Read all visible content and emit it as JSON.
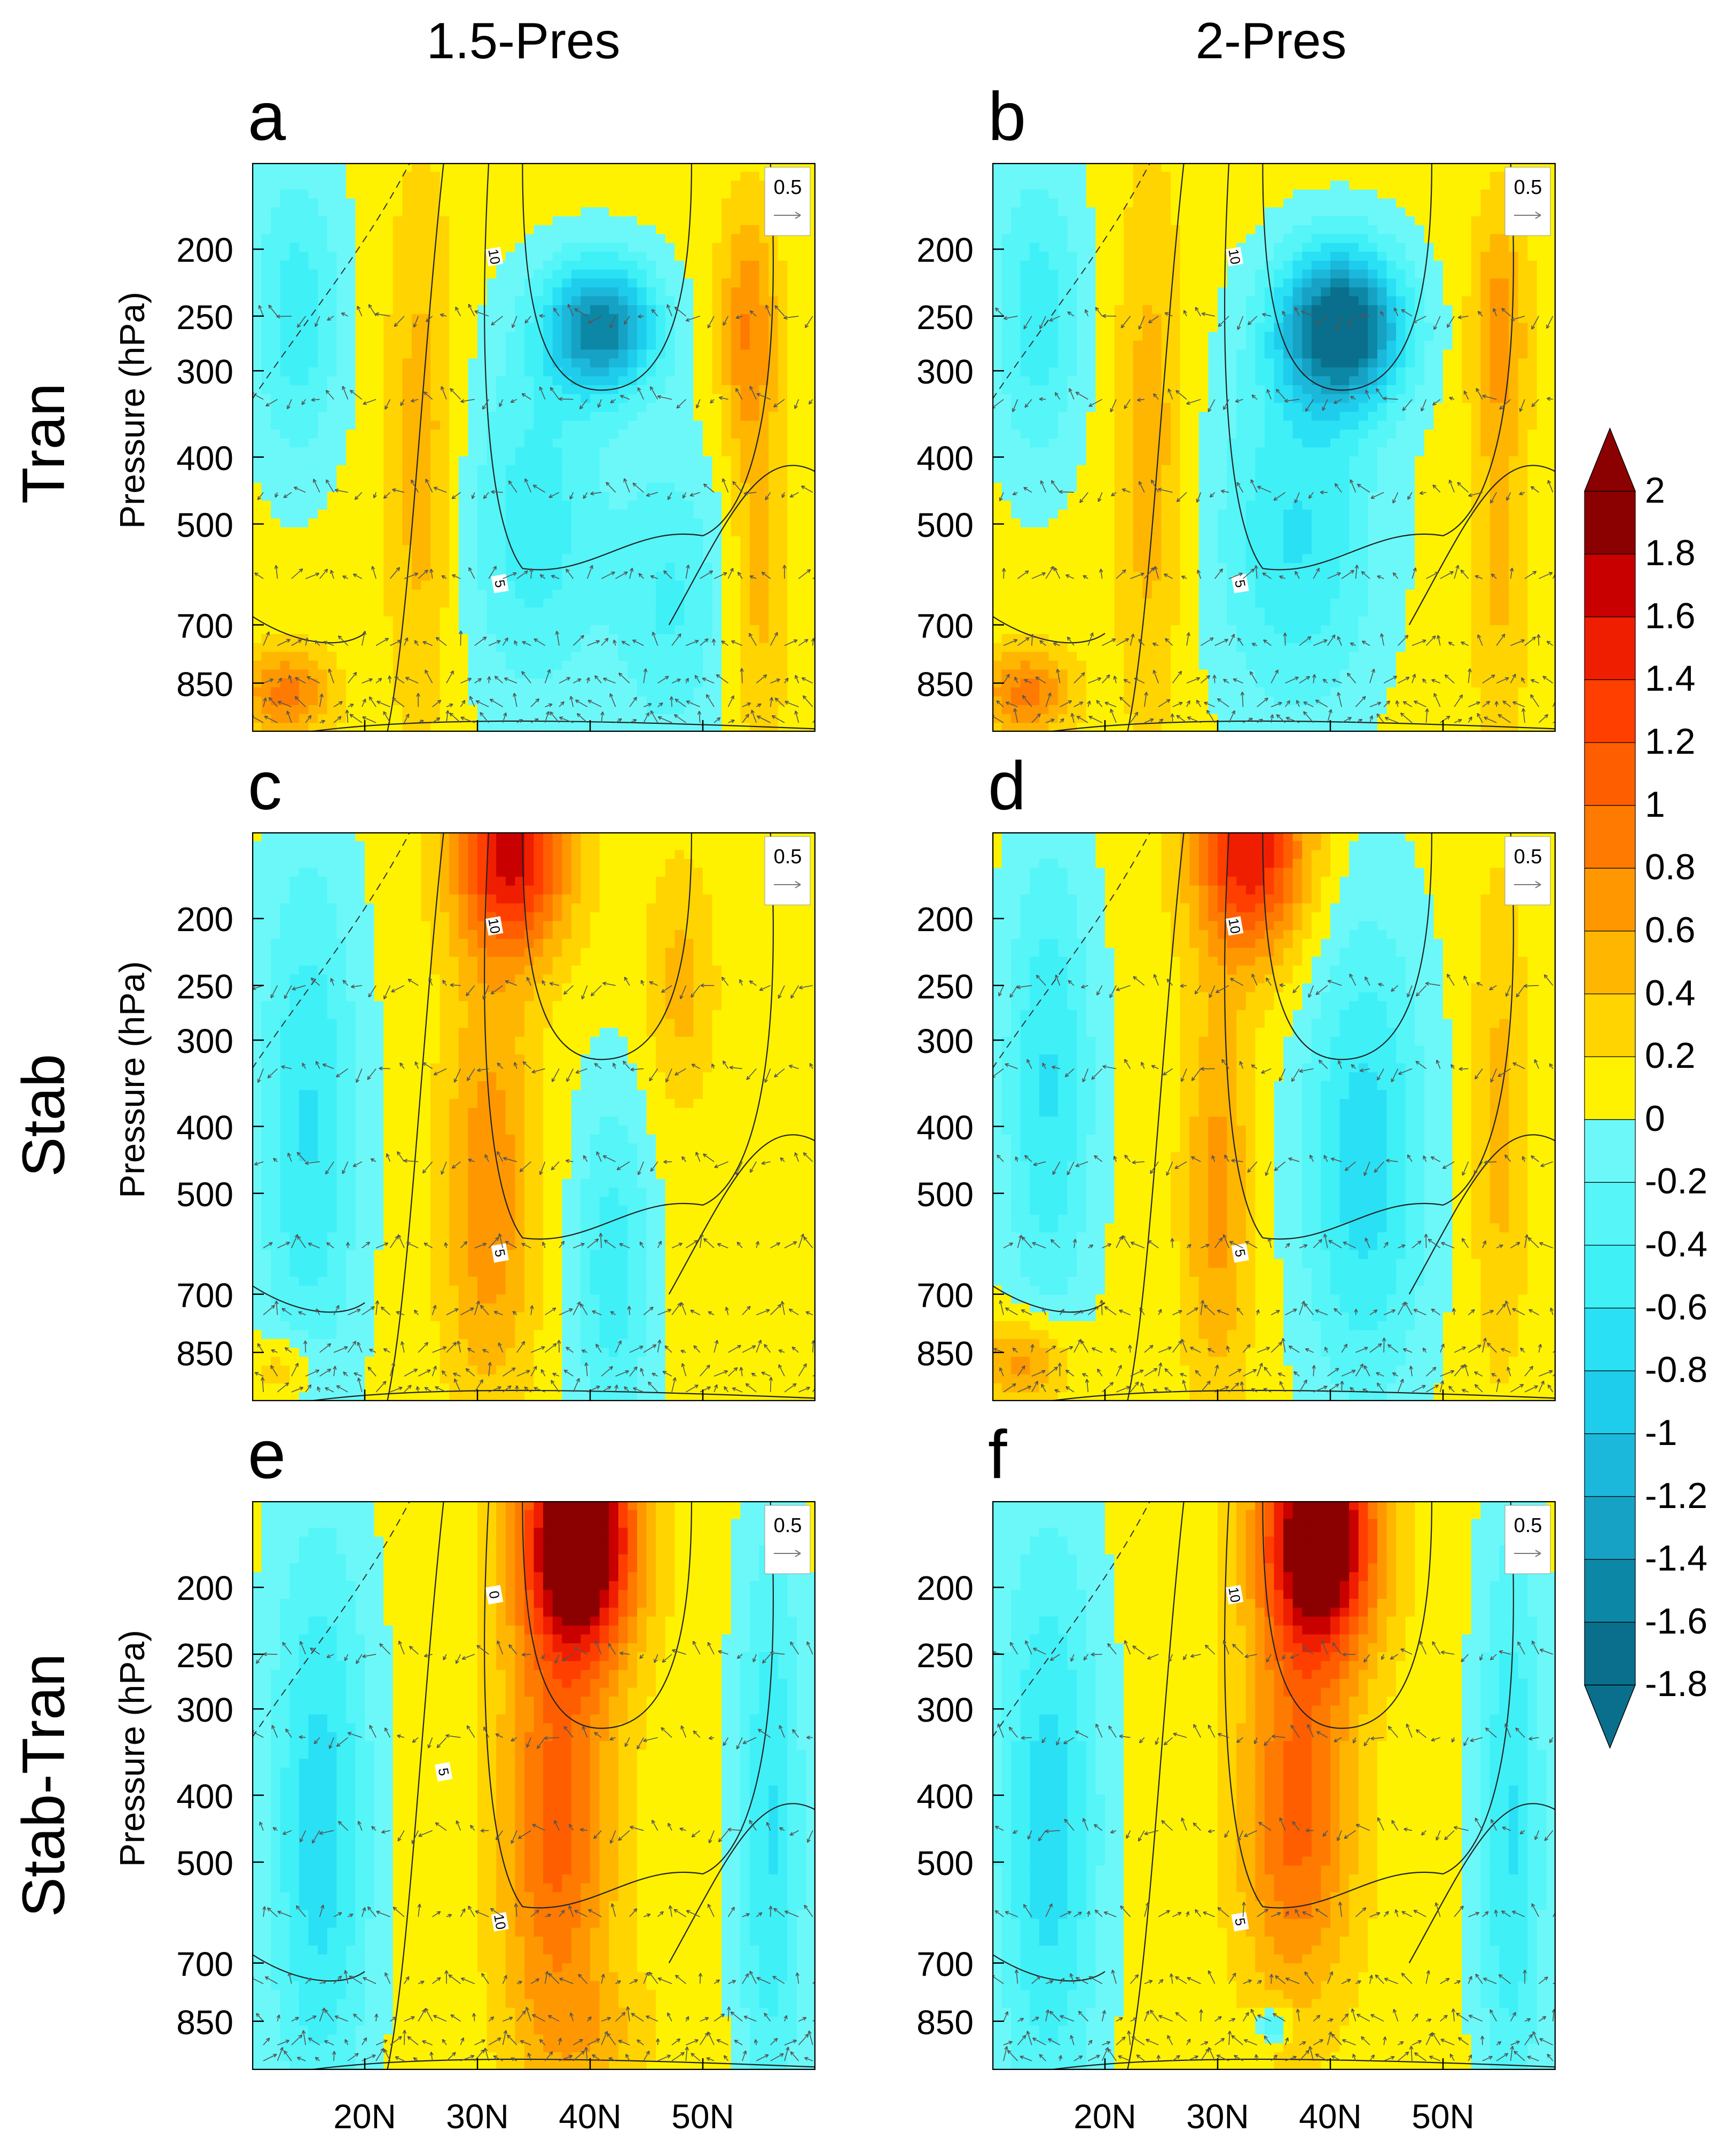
{
  "chart_data": {
    "type": "heatmap",
    "columns": [
      "1.5-Pres",
      "2-Pres"
    ],
    "rows": [
      "Tran",
      "Stab",
      "Stab-Tran"
    ],
    "ylabel": "Pressure (hPa)",
    "y_ticks": [
      200,
      250,
      300,
      400,
      500,
      700,
      850
    ],
    "y_range_hPa": [
      150,
      1000
    ],
    "x_ticks": [
      "20N",
      "30N",
      "40N",
      "50N"
    ],
    "x_range_deg": [
      10,
      60
    ],
    "vector_reference": "0.5",
    "colorbar": {
      "levels": [
        -1.8,
        -1.6,
        -1.4,
        -1.2,
        -1,
        -0.8,
        -0.6,
        -0.4,
        -0.2,
        0,
        0.2,
        0.4,
        0.6,
        0.8,
        1,
        1.2,
        1.4,
        1.6,
        1.8,
        2
      ],
      "labels": [
        "2",
        "1.8",
        "1.6",
        "1.4",
        "1.2",
        "1",
        "0.8",
        "0.6",
        "0.4",
        "0.2",
        "0",
        "-0.2",
        "-0.4",
        "-0.6",
        "-0.8",
        "-1",
        "-1.2",
        "-1.4",
        "-1.6",
        "-1.8"
      ],
      "colors": [
        "#0a6f8c",
        "#0d87a6",
        "#16a2c4",
        "#1bb8dc",
        "#1ecdeb",
        "#2ae0f4",
        "#3ff0f7",
        "#55f5f8",
        "#6cf8f8",
        "#fff200",
        "#ffd400",
        "#ffb600",
        "#ff9800",
        "#ff7a00",
        "#ff5e00",
        "#ff3f00",
        "#f01e00",
        "#c80000",
        "#8b0000"
      ]
    },
    "panels": [
      {
        "id": "a",
        "letter": "a",
        "row": "Tran",
        "column": "1.5-Pres",
        "contour_labels": [
          "10",
          "5"
        ],
        "features": [
          {
            "kind": "blob",
            "lat": 41,
            "p": 260,
            "amp": -1.6,
            "wlat": 5,
            "wlogp": 0.22
          },
          {
            "kind": "blob",
            "lat": 35,
            "p": 500,
            "amp": -0.6,
            "wlat": 6,
            "wlogp": 0.6
          },
          {
            "kind": "blob",
            "lat": 47,
            "p": 650,
            "amp": -0.5,
            "wlat": 5,
            "wlogp": 0.5
          },
          {
            "kind": "blob",
            "lat": 14,
            "p": 250,
            "amp": -0.6,
            "wlat": 4,
            "wlogp": 0.5
          },
          {
            "kind": "blob",
            "lat": 25,
            "p": 400,
            "amp": 0.45,
            "wlat": 3,
            "wlogp": 0.9
          },
          {
            "kind": "blob",
            "lat": 54,
            "p": 260,
            "amp": 0.7,
            "wlat": 2.5,
            "wlogp": 0.4
          },
          {
            "kind": "blob",
            "lat": 55,
            "p": 600,
            "amp": 0.4,
            "wlat": 2.5,
            "wlogp": 0.6
          },
          {
            "kind": "blob",
            "lat": 13,
            "p": 880,
            "amp": 0.8,
            "wlat": 4,
            "wlogp": 0.15
          }
        ]
      },
      {
        "id": "b",
        "letter": "b",
        "row": "Tran",
        "column": "2-Pres",
        "contour_labels": [
          "10",
          "5"
        ],
        "features": [
          {
            "kind": "blob",
            "lat": 41,
            "p": 260,
            "amp": -2.0,
            "wlat": 5.5,
            "wlogp": 0.26
          },
          {
            "kind": "blob",
            "lat": 37,
            "p": 520,
            "amp": -0.7,
            "wlat": 7,
            "wlogp": 0.6
          },
          {
            "kind": "blob",
            "lat": 14,
            "p": 250,
            "amp": -0.6,
            "wlat": 4,
            "wlogp": 0.5
          },
          {
            "kind": "blob",
            "lat": 24,
            "p": 400,
            "amp": 0.45,
            "wlat": 3,
            "wlogp": 0.9
          },
          {
            "kind": "blob",
            "lat": 55,
            "p": 260,
            "amp": 0.6,
            "wlat": 2.5,
            "wlogp": 0.4
          },
          {
            "kind": "blob",
            "lat": 55,
            "p": 600,
            "amp": 0.35,
            "wlat": 2.5,
            "wlogp": 0.6
          },
          {
            "kind": "blob",
            "lat": 13,
            "p": 880,
            "amp": 0.8,
            "wlat": 4,
            "wlogp": 0.15
          }
        ]
      },
      {
        "id": "c",
        "letter": "c",
        "row": "Stab",
        "column": "1.5-Pres",
        "contour_labels": [
          "10",
          "5"
        ],
        "features": [
          {
            "kind": "blob",
            "lat": 33,
            "p": 160,
            "amp": 1.6,
            "wlat": 5,
            "wlogp": 0.35
          },
          {
            "kind": "blob",
            "lat": 31,
            "p": 500,
            "amp": 0.7,
            "wlat": 4,
            "wlogp": 0.7
          },
          {
            "kind": "blob",
            "lat": 15,
            "p": 400,
            "amp": -0.7,
            "wlat": 4.5,
            "wlogp": 0.9
          },
          {
            "kind": "blob",
            "lat": 42,
            "p": 650,
            "amp": -0.6,
            "wlat": 3.5,
            "wlogp": 0.6
          },
          {
            "kind": "blob",
            "lat": 48,
            "p": 250,
            "amp": 0.4,
            "wlat": 3,
            "wlogp": 0.4
          },
          {
            "kind": "blob",
            "lat": 13,
            "p": 900,
            "amp": 0.4,
            "wlat": 3,
            "wlogp": 0.12
          }
        ]
      },
      {
        "id": "d",
        "letter": "d",
        "row": "Stab",
        "column": "2-Pres",
        "contour_labels": [
          "10",
          "5"
        ],
        "features": [
          {
            "kind": "blob",
            "lat": 33,
            "p": 160,
            "amp": 1.5,
            "wlat": 5,
            "wlogp": 0.35
          },
          {
            "kind": "blob",
            "lat": 30,
            "p": 500,
            "amp": 0.6,
            "wlat": 3,
            "wlogp": 0.7
          },
          {
            "kind": "blob",
            "lat": 15,
            "p": 350,
            "amp": -0.7,
            "wlat": 4,
            "wlogp": 0.8
          },
          {
            "kind": "blob",
            "lat": 43,
            "p": 450,
            "amp": -0.8,
            "wlat": 5.5,
            "wlogp": 0.8
          },
          {
            "kind": "blob",
            "lat": 13,
            "p": 880,
            "amp": 0.7,
            "wlat": 4,
            "wlogp": 0.15
          },
          {
            "kind": "blob",
            "lat": 55,
            "p": 400,
            "amp": 0.4,
            "wlat": 2.5,
            "wlogp": 0.8
          }
        ]
      },
      {
        "id": "e",
        "letter": "e",
        "row": "Stab-Tran",
        "column": "1.5-Pres",
        "contour_labels": [
          "0",
          "10",
          "5"
        ],
        "features": [
          {
            "kind": "blob",
            "lat": 39,
            "p": 170,
            "amp": 2.4,
            "wlat": 5,
            "wlogp": 0.4
          },
          {
            "kind": "blob",
            "lat": 37,
            "p": 450,
            "amp": 1.0,
            "wlat": 5,
            "wlogp": 0.7
          },
          {
            "kind": "blob",
            "lat": 16,
            "p": 450,
            "amp": -0.8,
            "wlat": 4.5,
            "wlogp": 1.0
          },
          {
            "kind": "blob",
            "lat": 56,
            "p": 450,
            "amp": -0.7,
            "wlat": 3,
            "wlogp": 1.0
          },
          {
            "kind": "blob",
            "lat": 40,
            "p": 880,
            "amp": 0.3,
            "wlat": 6,
            "wlogp": 0.2
          }
        ]
      },
      {
        "id": "f",
        "letter": "f",
        "row": "Stab-Tran",
        "column": "2-Pres",
        "contour_labels": [
          "10",
          "5"
        ],
        "features": [
          {
            "kind": "blob",
            "lat": 39,
            "p": 170,
            "amp": 2.3,
            "wlat": 5,
            "wlogp": 0.4
          },
          {
            "kind": "blob",
            "lat": 37,
            "p": 430,
            "amp": 1.0,
            "wlat": 5,
            "wlogp": 0.6
          },
          {
            "kind": "blob",
            "lat": 15,
            "p": 450,
            "amp": -0.8,
            "wlat": 4.5,
            "wlogp": 1.0
          },
          {
            "kind": "blob",
            "lat": 56,
            "p": 450,
            "amp": -0.7,
            "wlat": 3,
            "wlogp": 1.0
          },
          {
            "kind": "blob",
            "lat": 35,
            "p": 860,
            "amp": -0.6,
            "wlat": 1.5,
            "wlogp": 0.06
          }
        ]
      }
    ]
  }
}
